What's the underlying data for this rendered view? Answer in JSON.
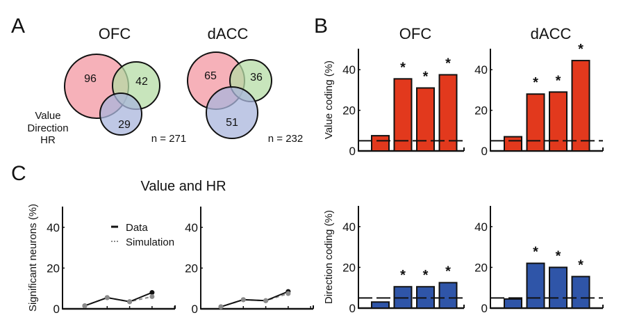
{
  "panels": {
    "A": {
      "label": "A",
      "legend": [
        {
          "label": "Value",
          "color": "#e0453a"
        },
        {
          "label": "Direction",
          "color": "#3d4f9a"
        },
        {
          "label": "HR",
          "color": "#4c9a4a"
        }
      ],
      "venns": [
        {
          "title": "OFC",
          "value_only": "96",
          "hr_only": "42",
          "direction_only": "29",
          "n_label": "n = 271"
        },
        {
          "title": "dACC",
          "value_only": "65",
          "hr_only": "36",
          "direction_only": "51",
          "n_label": "n = 232"
        }
      ]
    },
    "B": {
      "label": "B"
    },
    "C": {
      "label": "C",
      "title": "Value and HR"
    }
  },
  "colors": {
    "value_fill": "#f4a3ad",
    "hr_fill": "#b6dca6",
    "direction_fill": "#a9b5dc",
    "value_bar": "#e2391d",
    "direction_bar": "#2f55a8",
    "data_line": "#111111",
    "sim_line": "#8a8a8a"
  },
  "chart_data": [
    {
      "id": "value-ofc",
      "type": "bar",
      "title": "OFC",
      "ylabel": "Value coding (%)",
      "ylim": [
        0,
        50
      ],
      "yticks": [
        "0",
        "20",
        "40"
      ],
      "values": [
        7.5,
        35.5,
        31,
        37.5
      ],
      "significant": [
        false,
        true,
        true,
        true
      ],
      "chance_level": 5,
      "color_key": "value_bar"
    },
    {
      "id": "value-dacc",
      "type": "bar",
      "title": "dACC",
      "ylabel": "",
      "ylim": [
        0,
        50
      ],
      "yticks": [
        "0",
        "20",
        "40"
      ],
      "values": [
        7,
        28,
        29,
        44.5
      ],
      "significant": [
        false,
        true,
        true,
        true
      ],
      "chance_level": 5,
      "color_key": "value_bar"
    },
    {
      "id": "direction-ofc",
      "type": "bar",
      "title": "",
      "ylabel": "Direction coding (%)",
      "ylim": [
        0,
        50
      ],
      "yticks": [
        "0",
        "20",
        "40"
      ],
      "values": [
        3,
        10.5,
        10.5,
        12.5
      ],
      "significant": [
        false,
        true,
        true,
        true
      ],
      "chance_level": 5,
      "color_key": "direction_bar"
    },
    {
      "id": "direction-dacc",
      "type": "bar",
      "title": "",
      "ylabel": "",
      "ylim": [
        0,
        50
      ],
      "yticks": [
        "0",
        "20",
        "40"
      ],
      "values": [
        4.5,
        22,
        20,
        15.5
      ],
      "significant": [
        false,
        true,
        true,
        true
      ],
      "chance_level": 5,
      "color_key": "direction_bar"
    },
    {
      "id": "overlap-ofc",
      "type": "line",
      "title": "Value and HR",
      "ylabel": "Significant neurons (%)",
      "ylim": [
        0,
        50
      ],
      "yticks": [
        "0",
        "20",
        "40"
      ],
      "x": [
        1,
        2,
        3,
        4
      ],
      "series": [
        {
          "name": "Data",
          "values": [
            1.5,
            5.5,
            3.5,
            8
          ]
        },
        {
          "name": "Simulation",
          "values": [
            1.5,
            5.5,
            3.5,
            6
          ]
        }
      ],
      "legend": [
        {
          "label": "Data",
          "style": "solid"
        },
        {
          "label": "Simulation",
          "style": "dotted"
        }
      ],
      "legend_position": "top-right"
    },
    {
      "id": "overlap-dacc",
      "type": "line",
      "title": "",
      "ylabel": "",
      "ylim": [
        0,
        50
      ],
      "yticks": [
        "0",
        "20",
        "40"
      ],
      "x": [
        1,
        2,
        3,
        4
      ],
      "series": [
        {
          "name": "Data",
          "values": [
            1,
            4.5,
            4,
            8.5
          ]
        },
        {
          "name": "Simulation",
          "values": [
            1,
            4.5,
            4,
            7.5
          ]
        }
      ]
    }
  ]
}
